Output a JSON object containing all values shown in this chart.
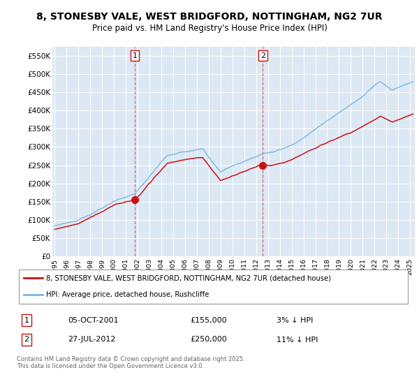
{
  "title": "8, STONESBY VALE, WEST BRIDGFORD, NOTTINGHAM, NG2 7UR",
  "subtitle": "Price paid vs. HM Land Registry's House Price Index (HPI)",
  "hpi_color": "#7ab5e0",
  "price_color": "#cc1111",
  "plot_bg_color": "#dce8f4",
  "grid_color": "#ffffff",
  "ylim": [
    0,
    575000
  ],
  "yticks": [
    0,
    50000,
    100000,
    150000,
    200000,
    250000,
    300000,
    350000,
    400000,
    450000,
    500000,
    550000
  ],
  "ytick_labels": [
    "£0",
    "£50K",
    "£100K",
    "£150K",
    "£200K",
    "£250K",
    "£300K",
    "£350K",
    "£400K",
    "£450K",
    "£500K",
    "£550K"
  ],
  "sale1_date": "05-OCT-2001",
  "sale1_price": 155000,
  "sale1_pct": "3%",
  "sale2_date": "27-JUL-2012",
  "sale2_price": 250000,
  "sale2_pct": "11%",
  "legend_line1": "8, STONESBY VALE, WEST BRIDGFORD, NOTTINGHAM, NG2 7UR (detached house)",
  "legend_line2": "HPI: Average price, detached house, Rushcliffe",
  "footer": "Contains HM Land Registry data © Crown copyright and database right 2025.\nThis data is licensed under the Open Government Licence v3.0.",
  "annotation1_label": "1",
  "annotation2_label": "2",
  "sale1_x": 2001.75,
  "sale2_x": 2012.57
}
